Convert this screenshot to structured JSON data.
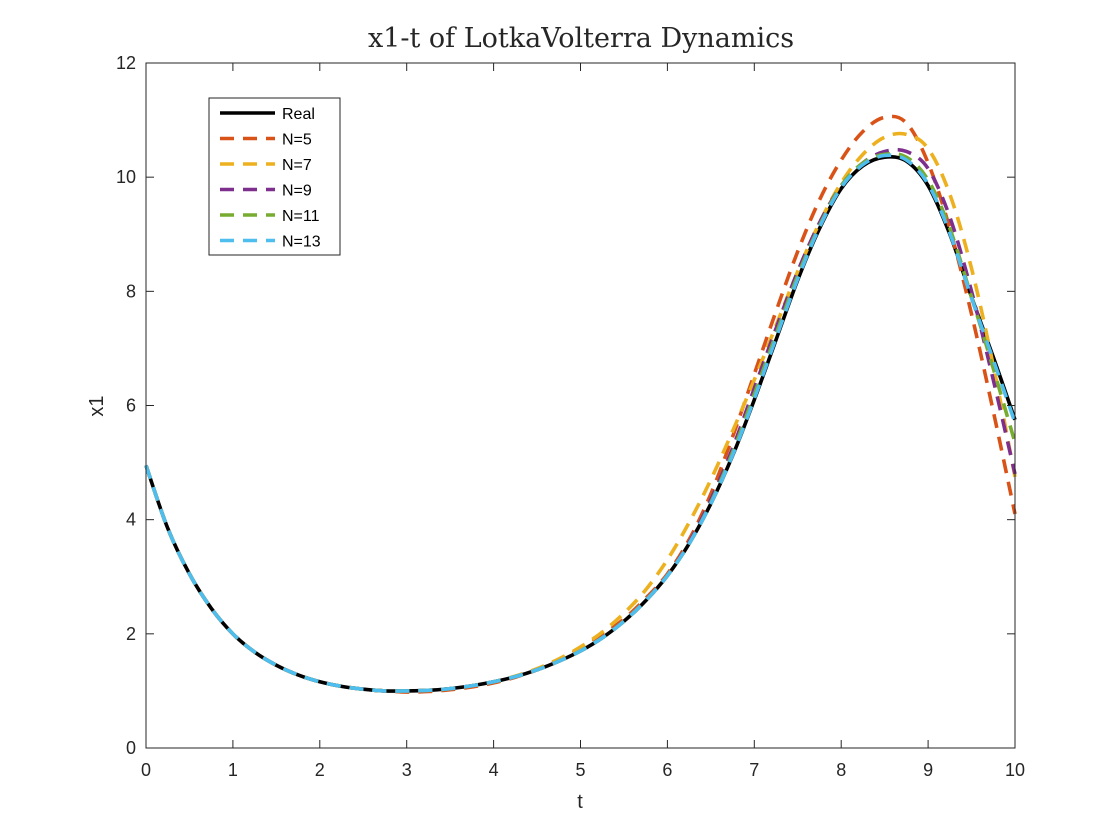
{
  "chart_data": {
    "type": "line",
    "title": "x1-t of LotkaVolterra Dynamics",
    "xlabel": "t",
    "ylabel": "x1",
    "xlim": [
      0,
      10
    ],
    "ylim": [
      0,
      12
    ],
    "xticks": [
      0,
      1,
      2,
      3,
      4,
      5,
      6,
      7,
      8,
      9,
      10
    ],
    "yticks": [
      0,
      2,
      4,
      6,
      8,
      10,
      12
    ],
    "grid": false,
    "legend_position": "top-left",
    "series": [
      {
        "name": "Real",
        "color": "#000000",
        "style": "solid",
        "x": [
          0,
          0.25,
          0.5,
          0.75,
          1,
          1.25,
          1.5,
          1.75,
          2,
          2.25,
          2.5,
          2.75,
          3,
          3.25,
          3.5,
          3.75,
          4,
          4.25,
          4.5,
          4.75,
          5,
          5.25,
          5.5,
          5.75,
          6,
          6.25,
          6.5,
          6.75,
          7,
          7.25,
          7.5,
          7.75,
          8,
          8.25,
          8.5,
          8.75,
          9,
          9.25,
          9.5,
          9.75,
          10
        ],
        "y": [
          4.95,
          3.85,
          3.05,
          2.45,
          2.0,
          1.68,
          1.45,
          1.28,
          1.16,
          1.08,
          1.03,
          1.0,
          1.0,
          1.01,
          1.04,
          1.09,
          1.16,
          1.25,
          1.37,
          1.52,
          1.7,
          1.93,
          2.22,
          2.58,
          3.02,
          3.58,
          4.28,
          5.12,
          6.1,
          7.15,
          8.2,
          9.1,
          9.8,
          10.2,
          10.35,
          10.28,
          9.85,
          9.0,
          7.9,
          6.85,
          5.75
        ]
      },
      {
        "name": "N=5",
        "color": "#D95319",
        "style": "dashed",
        "x": [
          0,
          0.25,
          0.5,
          0.75,
          1,
          1.25,
          1.5,
          1.75,
          2,
          2.25,
          2.5,
          2.75,
          3,
          3.25,
          3.5,
          3.75,
          4,
          4.25,
          4.5,
          4.75,
          5,
          5.25,
          5.5,
          5.75,
          6,
          6.25,
          6.5,
          6.75,
          7,
          7.25,
          7.5,
          7.75,
          8,
          8.25,
          8.5,
          8.75,
          9,
          9.25,
          9.5,
          9.75,
          10
        ],
        "y": [
          4.95,
          3.85,
          3.05,
          2.45,
          2.0,
          1.68,
          1.45,
          1.28,
          1.16,
          1.08,
          1.03,
          1.0,
          0.98,
          0.99,
          1.02,
          1.07,
          1.14,
          1.24,
          1.37,
          1.54,
          1.74,
          1.98,
          2.26,
          2.62,
          3.05,
          3.65,
          4.45,
          5.45,
          6.55,
          7.65,
          8.7,
          9.6,
          10.3,
          10.8,
          11.05,
          10.95,
          10.25,
          9.1,
          7.6,
          5.9,
          4.1
        ]
      },
      {
        "name": "N=7",
        "color": "#EDB120",
        "style": "dashed",
        "x": [
          0,
          0.25,
          0.5,
          0.75,
          1,
          1.25,
          1.5,
          1.75,
          2,
          2.25,
          2.5,
          2.75,
          3,
          3.25,
          3.5,
          3.75,
          4,
          4.25,
          4.5,
          4.75,
          5,
          5.25,
          5.5,
          5.75,
          6,
          6.25,
          6.5,
          6.75,
          7,
          7.25,
          7.5,
          7.75,
          8,
          8.25,
          8.5,
          8.75,
          9,
          9.25,
          9.5,
          9.75,
          10
        ],
        "y": [
          4.95,
          3.85,
          3.05,
          2.45,
          2.0,
          1.68,
          1.45,
          1.28,
          1.16,
          1.08,
          1.03,
          1.0,
          1.0,
          1.01,
          1.04,
          1.09,
          1.16,
          1.26,
          1.39,
          1.56,
          1.77,
          2.03,
          2.36,
          2.77,
          3.3,
          3.95,
          4.7,
          5.55,
          6.45,
          7.4,
          8.35,
          9.2,
          9.9,
          10.4,
          10.7,
          10.75,
          10.5,
          9.7,
          8.4,
          6.7,
          4.75
        ]
      },
      {
        "name": "N=9",
        "color": "#7E2F8E",
        "style": "dashed",
        "x": [
          0,
          0.25,
          0.5,
          0.75,
          1,
          1.25,
          1.5,
          1.75,
          2,
          2.25,
          2.5,
          2.75,
          3,
          3.25,
          3.5,
          3.75,
          4,
          4.25,
          4.5,
          4.75,
          5,
          5.25,
          5.5,
          5.75,
          6,
          6.25,
          6.5,
          6.75,
          7,
          7.25,
          7.5,
          7.75,
          8,
          8.25,
          8.5,
          8.75,
          9,
          9.25,
          9.5,
          9.75,
          10
        ],
        "y": [
          4.95,
          3.85,
          3.05,
          2.45,
          2.0,
          1.68,
          1.45,
          1.28,
          1.16,
          1.08,
          1.03,
          1.0,
          1.0,
          1.01,
          1.04,
          1.09,
          1.16,
          1.25,
          1.37,
          1.52,
          1.7,
          1.93,
          2.22,
          2.58,
          3.02,
          3.6,
          4.35,
          5.25,
          6.3,
          7.35,
          8.35,
          9.2,
          9.85,
          10.25,
          10.45,
          10.45,
          10.15,
          9.3,
          8.0,
          6.45,
          4.8
        ]
      },
      {
        "name": "N=11",
        "color": "#77AC30",
        "style": "dashed",
        "x": [
          0,
          0.25,
          0.5,
          0.75,
          1,
          1.25,
          1.5,
          1.75,
          2,
          2.25,
          2.5,
          2.75,
          3,
          3.25,
          3.5,
          3.75,
          4,
          4.25,
          4.5,
          4.75,
          5,
          5.25,
          5.5,
          5.75,
          6,
          6.25,
          6.5,
          6.75,
          7,
          7.25,
          7.5,
          7.75,
          8,
          8.25,
          8.5,
          8.75,
          9,
          9.25,
          9.5,
          9.75,
          10
        ],
        "y": [
          4.95,
          3.85,
          3.05,
          2.45,
          2.0,
          1.68,
          1.45,
          1.28,
          1.16,
          1.08,
          1.03,
          1.0,
          1.0,
          1.01,
          1.04,
          1.09,
          1.16,
          1.25,
          1.37,
          1.52,
          1.7,
          1.93,
          2.22,
          2.58,
          3.02,
          3.58,
          4.3,
          5.18,
          6.2,
          7.25,
          8.28,
          9.15,
          9.85,
          10.25,
          10.4,
          10.35,
          9.95,
          9.1,
          7.9,
          6.65,
          5.35
        ]
      },
      {
        "name": "N=13",
        "color": "#4DBEEE",
        "style": "dashed",
        "x": [
          0,
          0.25,
          0.5,
          0.75,
          1,
          1.25,
          1.5,
          1.75,
          2,
          2.25,
          2.5,
          2.75,
          3,
          3.25,
          3.5,
          3.75,
          4,
          4.25,
          4.5,
          4.75,
          5,
          5.25,
          5.5,
          5.75,
          6,
          6.25,
          6.5,
          6.75,
          7,
          7.25,
          7.5,
          7.75,
          8,
          8.25,
          8.5,
          8.75,
          9,
          9.25,
          9.5,
          9.75,
          10
        ],
        "y": [
          4.95,
          3.85,
          3.05,
          2.45,
          2.0,
          1.68,
          1.45,
          1.28,
          1.16,
          1.08,
          1.03,
          1.0,
          1.0,
          1.01,
          1.04,
          1.09,
          1.16,
          1.25,
          1.37,
          1.52,
          1.7,
          1.93,
          2.22,
          2.58,
          3.02,
          3.58,
          4.28,
          5.13,
          6.12,
          7.18,
          8.22,
          9.12,
          9.82,
          10.22,
          10.38,
          10.3,
          9.88,
          9.02,
          7.88,
          6.8,
          5.7
        ]
      }
    ]
  }
}
